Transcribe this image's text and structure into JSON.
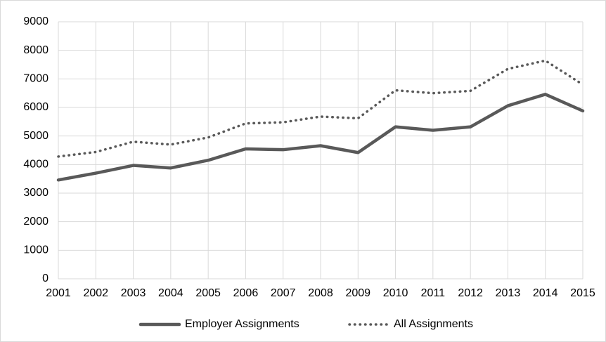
{
  "chart_data": {
    "type": "line",
    "x": [
      2001,
      2002,
      2003,
      2004,
      2005,
      2006,
      2007,
      2008,
      2009,
      2010,
      2011,
      2012,
      2013,
      2014,
      2015
    ],
    "series": [
      {
        "name": "Employer Assignments",
        "color": "#595959",
        "style": "solid",
        "values": [
          3460,
          3700,
          3970,
          3880,
          4150,
          4550,
          4520,
          4660,
          4420,
          5320,
          5200,
          5320,
          6060,
          6460,
          5880
        ]
      },
      {
        "name": "All Assignments",
        "color": "#595959",
        "style": "dotted",
        "values": [
          4280,
          4440,
          4800,
          4700,
          4950,
          5440,
          5480,
          5680,
          5620,
          6600,
          6500,
          6580,
          7350,
          7640,
          6800
        ]
      }
    ],
    "xlim": [
      2001,
      2015
    ],
    "xticks": [
      2001,
      2002,
      2003,
      2004,
      2005,
      2006,
      2007,
      2008,
      2009,
      2010,
      2011,
      2012,
      2013,
      2014,
      2015
    ],
    "ylim": [
      0,
      9000
    ],
    "yticks": [
      0,
      1000,
      2000,
      3000,
      4000,
      5000,
      6000,
      7000,
      8000,
      9000
    ],
    "grid": true,
    "legend": "bottom"
  }
}
